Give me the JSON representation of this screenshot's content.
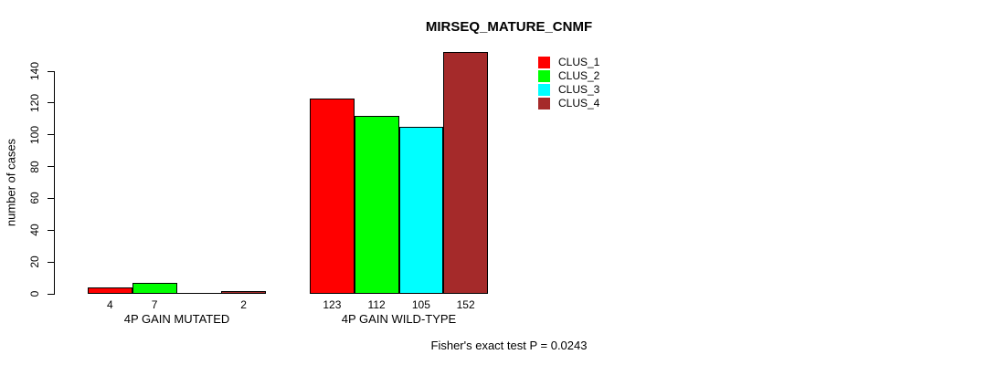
{
  "chart_data": {
    "type": "bar",
    "title": "MIRSEQ_MATURE_CNMF",
    "ylabel": "number of cases",
    "xlabel": "",
    "ylim": [
      0,
      155
    ],
    "yticks": [
      0,
      20,
      40,
      60,
      80,
      100,
      120,
      140
    ],
    "grid": false,
    "legend_position": "top-right",
    "categories": [
      "4P GAIN MUTATED",
      "4P GAIN WILD-TYPE"
    ],
    "series": [
      {
        "name": "CLUS_1",
        "color": "#FF0000",
        "values": [
          4,
          123
        ]
      },
      {
        "name": "CLUS_2",
        "color": "#00FF00",
        "values": [
          7,
          112
        ]
      },
      {
        "name": "CLUS_3",
        "color": "#00FFFF",
        "values": [
          0,
          105
        ]
      },
      {
        "name": "CLUS_4",
        "color": "#A52A2A",
        "values": [
          2,
          152
        ]
      }
    ],
    "bar_value_labels": [
      [
        "4",
        "7",
        "",
        "2"
      ],
      [
        "123",
        "112",
        "105",
        "152"
      ]
    ],
    "annotation": "Fisher's exact test P = 0.0243"
  }
}
